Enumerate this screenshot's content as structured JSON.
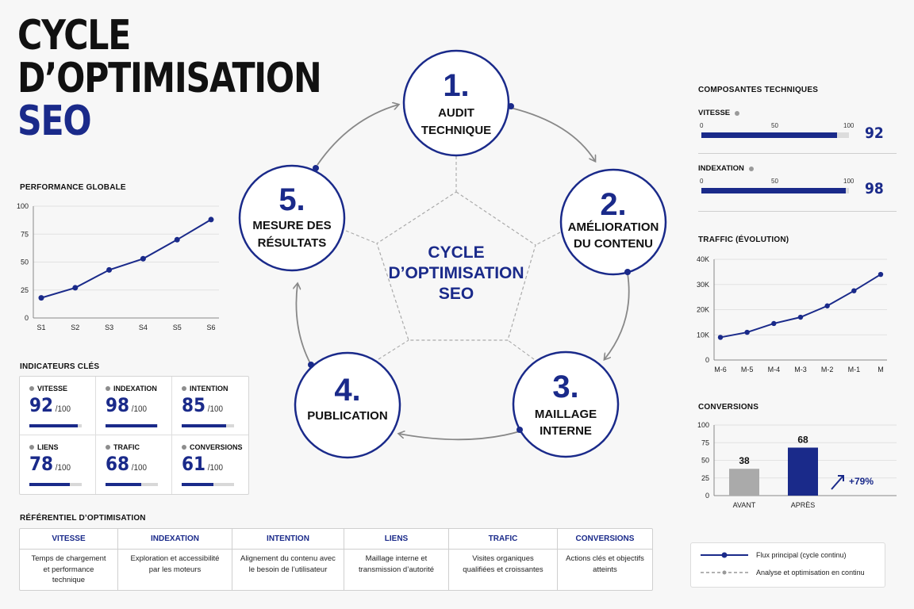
{
  "title": {
    "line1": "CYCLE",
    "line2": "D’OPTIMISATION",
    "line3": "SEO"
  },
  "colors": {
    "primary": "#1a2a8a",
    "grey": "#9a9a9a",
    "arrow": "#888888"
  },
  "cycle": {
    "center": {
      "line1": "CYCLE",
      "line2": "D’OPTIMISATION",
      "line3": "SEO"
    },
    "steps": [
      {
        "number": "1.",
        "line1": "AUDIT",
        "line2": "TECHNIQUE"
      },
      {
        "number": "2.",
        "line1": "AMÉLIORATION",
        "line2": "DU CONTENU"
      },
      {
        "number": "3.",
        "line1": "MAILLAGE",
        "line2": "INTERNE"
      },
      {
        "number": "4.",
        "line1": "PUBLICATION",
        "line2": ""
      },
      {
        "number": "5.",
        "line1": "MESURE DES",
        "line2": "RÉSULTATS"
      }
    ]
  },
  "performance": {
    "title": "PERFORMANCE GLOBALE",
    "chart_data": {
      "type": "line",
      "categories": [
        "S1",
        "S2",
        "S3",
        "S4",
        "S5",
        "S6"
      ],
      "values": [
        18,
        27,
        43,
        53,
        70,
        88
      ],
      "ylim": [
        0,
        100
      ],
      "yticks": [
        "0",
        "25",
        "50",
        "75",
        "100"
      ]
    }
  },
  "kpis": {
    "title": "INDICATEURS CLÉS",
    "max_label": "/100",
    "items": [
      {
        "label": "VITESSE",
        "value": "92",
        "fraction": 0.92
      },
      {
        "label": "INDEXATION",
        "value": "98",
        "fraction": 0.98
      },
      {
        "label": "INTENTION",
        "value": "85",
        "fraction": 0.85
      },
      {
        "label": "LIENS",
        "value": "78",
        "fraction": 0.78
      },
      {
        "label": "TRAFIC",
        "value": "68",
        "fraction": 0.68
      },
      {
        "label": "CONVERSIONS",
        "value": "61",
        "fraction": 0.61
      }
    ]
  },
  "referentiel": {
    "title": "RÉFÉRENTIEL D’OPTIMISATION",
    "columns": [
      {
        "head": "VITESSE",
        "desc": "Temps de chargement et performance technique"
      },
      {
        "head": "INDEXATION",
        "desc": "Exploration et accessibilité par les moteurs"
      },
      {
        "head": "INTENTION",
        "desc": "Alignement du contenu avec le besoin de l’utilisateur"
      },
      {
        "head": "LIENS",
        "desc": "Maillage interne et transmission d’autorité"
      },
      {
        "head": "TRAFIC",
        "desc": "Visites organiques qualifiées et croissantes"
      },
      {
        "head": "CONVERSIONS",
        "desc": "Actions clés et objectifs atteints"
      }
    ]
  },
  "tech": {
    "title": "COMPOSANTES TECHNIQUES",
    "scale": [
      "0",
      "50",
      "100"
    ],
    "items": [
      {
        "label": "VITESSE",
        "value": "92",
        "fraction": 0.92
      },
      {
        "label": "INDEXATION",
        "value": "98",
        "fraction": 0.98
      }
    ]
  },
  "traffic": {
    "title": "TRAFFIC (ÉVOLUTION)",
    "chart_data": {
      "type": "line",
      "categories": [
        "M-6",
        "M-5",
        "M-4",
        "M-3",
        "M-2",
        "M-1",
        "M"
      ],
      "values": [
        9000,
        11000,
        14500,
        17000,
        21500,
        27500,
        34000
      ],
      "ylim": [
        0,
        40000
      ],
      "yticks": [
        "0",
        "10K",
        "20K",
        "30K",
        "40K"
      ]
    }
  },
  "conversions": {
    "title": "CONVERSIONS",
    "growth": "+79%",
    "chart_data": {
      "type": "bar",
      "categories": [
        "AVANT",
        "APRÈS"
      ],
      "values": [
        38,
        68
      ],
      "labels": [
        "38",
        "68"
      ],
      "colors": [
        "#aaaaaa",
        "#1a2a8a"
      ],
      "ylim": [
        0,
        100
      ],
      "yticks": [
        "0",
        "25",
        "50",
        "75",
        "100"
      ]
    }
  },
  "legend": {
    "main": "Flux principal (cycle continu)",
    "secondary": "Analyse et optimisation en continu"
  }
}
